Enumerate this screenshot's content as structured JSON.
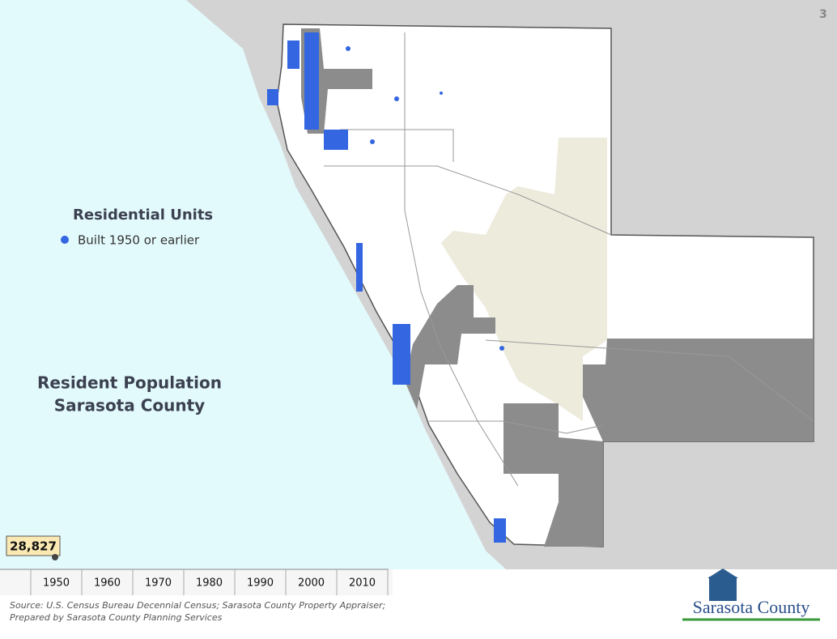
{
  "page_number": "3",
  "legend": {
    "title": "Residential Units",
    "items": [
      "Built 1950 or earlier"
    ]
  },
  "heading": {
    "line1": "Resident Population",
    "line2": "Sarasota County"
  },
  "timeline": {
    "current_value": "28,827",
    "years": [
      "1950",
      "1960",
      "1970",
      "1980",
      "1990",
      "2000",
      "2010"
    ]
  },
  "footer": {
    "source_line1": "Source: U.S. Census Bureau Decennial Census; Sarasota County Property Appraiser;",
    "source_line2": "Prepared by Sarasota County Planning Services",
    "logo_text": "Sarasota County"
  }
}
